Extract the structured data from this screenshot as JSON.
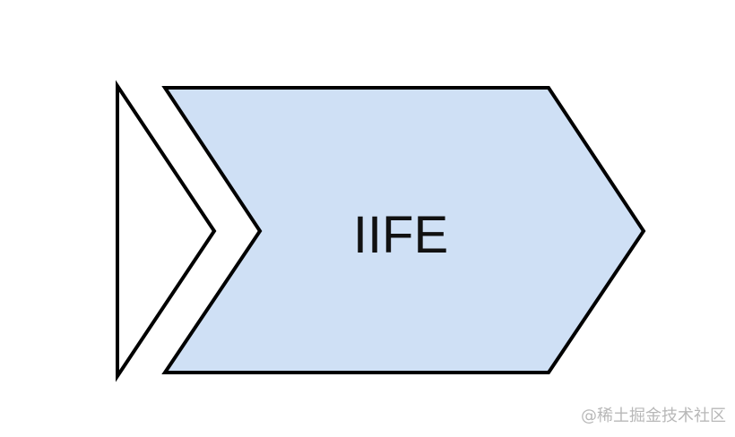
{
  "diagram": {
    "main_label": "IIFE",
    "colors": {
      "fill_main": "#cfe0f5",
      "fill_small": "#ffffff",
      "stroke": "#000000"
    }
  },
  "watermark": {
    "text": "@稀土掘金技术社区"
  }
}
